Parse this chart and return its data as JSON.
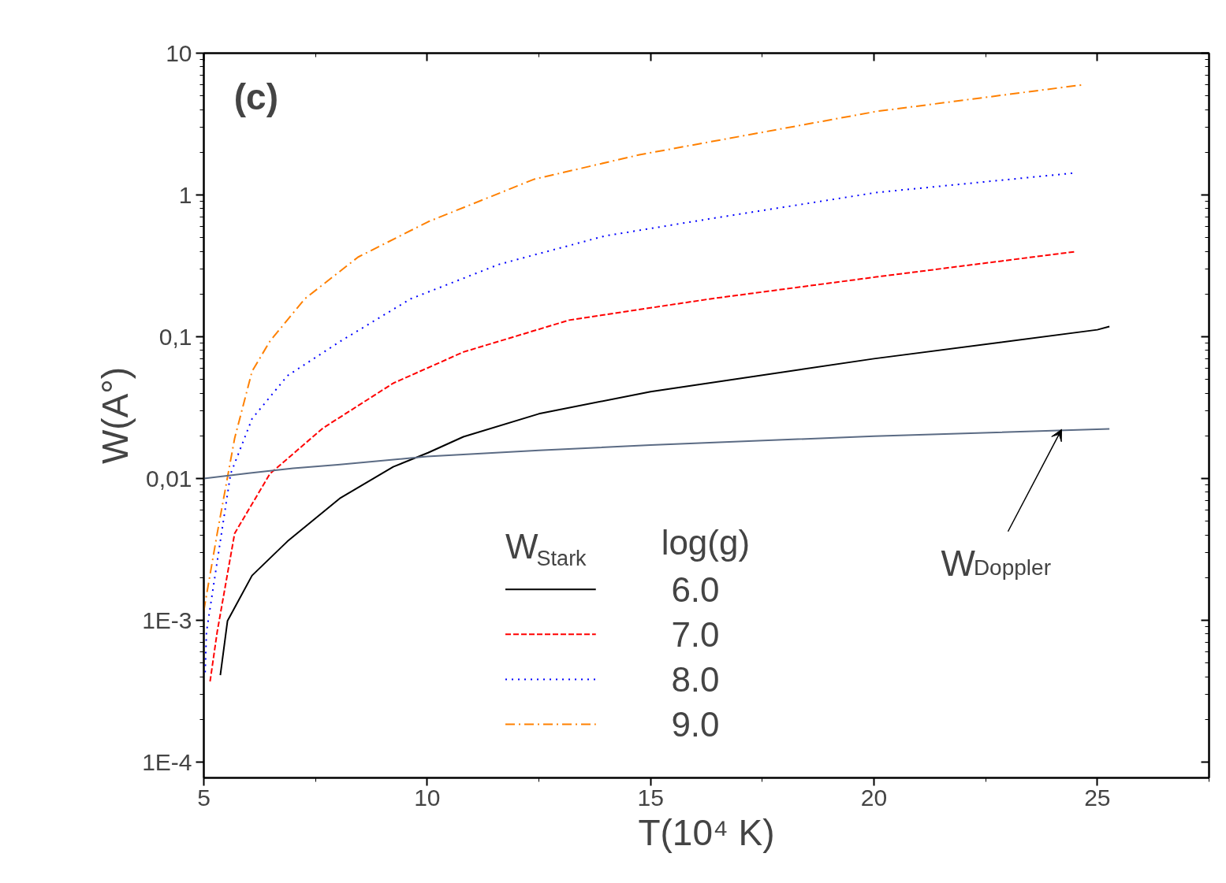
{
  "chart_data": {
    "type": "line",
    "xlabel": "T(10⁴ K)",
    "ylabel": "W(A°)",
    "log": "y",
    "xlim": [
      5,
      27.5
    ],
    "ylim": [
      7.74e-05,
      10
    ],
    "xticks": [
      5,
      10,
      15,
      20,
      25
    ],
    "yticks": [
      {
        "value": 0.0001,
        "label": "1E-4"
      },
      {
        "value": 0.001,
        "label": "1E-3"
      },
      {
        "value": 0.01,
        "label": "0,01"
      },
      {
        "value": 0.1,
        "label": "0,1"
      },
      1,
      10
    ],
    "legend": "bottom",
    "legend_title": "log(g)",
    "grid": false,
    "annotations": [
      "(c)",
      "W$_{Stark}$",
      {
        "text": "W$_{Doppler}$",
        "x": 24.2,
        "y": 0.0222
      }
    ],
    "series": [
      {
        "name": "6.0",
        "color": "#000000",
        "line_style": "solid",
        "x": [
          5.37,
          5.53,
          6.08,
          6.87,
          8.06,
          9.24,
          10.02,
          10.81,
          12.5,
          15,
          20,
          25,
          25.27
        ],
        "values": [
          0.00041,
          0.00099,
          0.00207,
          0.0036,
          0.0073,
          0.0121,
          0.0152,
          0.0197,
          0.0286,
          0.041,
          0.07,
          0.112,
          0.118
        ]
      },
      {
        "name": "7.0",
        "color": "#ff0000",
        "line_style": "dashed",
        "x": [
          5.14,
          5.3,
          5.69,
          6.48,
          7.67,
          9.24,
          10.81,
          13.18,
          16.34,
          20.05,
          24.5
        ],
        "values": [
          0.00037,
          0.00083,
          0.0041,
          0.0108,
          0.0227,
          0.047,
          0.078,
          0.131,
          0.185,
          0.264,
          0.398
        ]
      },
      {
        "name": "8.0",
        "color": "#0000ff",
        "line_style": "dotted",
        "x": [
          5.03,
          5.06,
          5.3,
          5.6,
          6.08,
          6.87,
          8.06,
          9.63,
          11.61,
          13.98,
          16.34,
          20.05,
          24.5
        ],
        "values": [
          0.00043,
          0.00083,
          0.0026,
          0.0108,
          0.0264,
          0.053,
          0.093,
          0.185,
          0.324,
          0.514,
          0.68,
          1.04,
          1.43
        ]
      },
      {
        "name": "9.0",
        "color": "#ff8000",
        "line_style": "dashdot",
        "x": [
          5.0,
          5.3,
          5.69,
          6.08,
          6.48,
          7.26,
          8.45,
          10.02,
          12.39,
          14.75,
          20.05,
          24.7
        ],
        "values": [
          0.00117,
          0.0041,
          0.0192,
          0.057,
          0.093,
          0.185,
          0.364,
          0.647,
          1.29,
          1.92,
          3.88,
          6.0
        ]
      },
      {
        "color": "#5b6b84",
        "line_style": "solid",
        "x": [
          5,
          6,
          7,
          8,
          10,
          12.5,
          15,
          20,
          25.27
        ],
        "values": [
          0.01,
          0.0109,
          0.0118,
          0.0125,
          0.0143,
          0.0158,
          0.0172,
          0.0199,
          0.0224
        ]
      }
    ]
  }
}
